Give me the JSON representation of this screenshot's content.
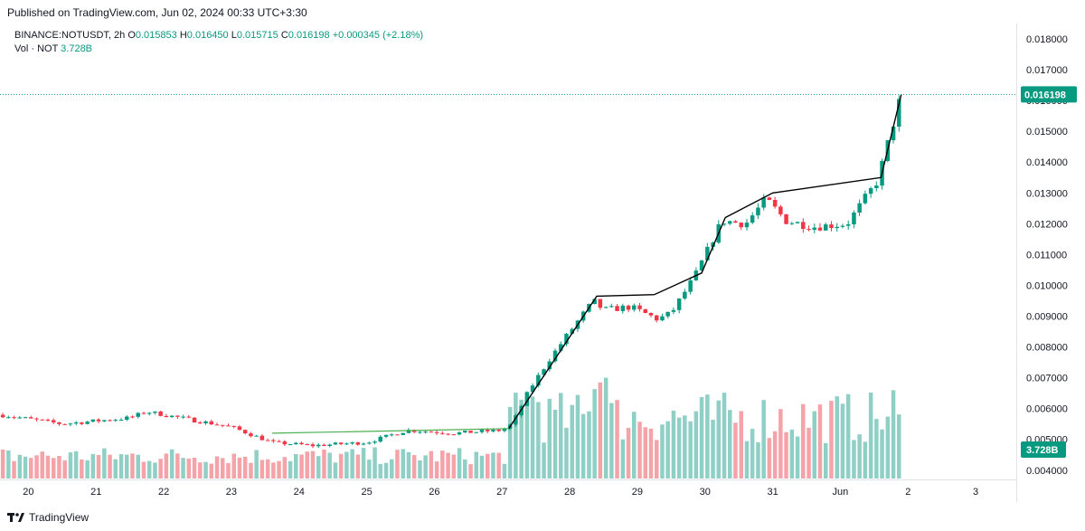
{
  "header": {
    "published_text": "Published on TradingView.com, Jun 02, 2024 00:33 UTC+3:30"
  },
  "legend": {
    "symbol": "BINANCE:NOTUSDT, 2h",
    "open_label": "O",
    "open": "0.015853",
    "high_label": "H",
    "high": "0.016450",
    "low_label": "L",
    "low": "0.015715",
    "close_label": "C",
    "close": "0.016198",
    "change": "+0.000345 (+2.18%)",
    "vol_label": "Vol · NOT",
    "vol_value": "3.728B"
  },
  "footer": {
    "brand": "TradingView",
    "logo_text": "TV"
  },
  "colors": {
    "up": "#089981",
    "down": "#f23645",
    "vol_up": "#8fcfc5",
    "vol_down": "#f4a3a8",
    "last_price": "#089981",
    "trendline_black": "#000000",
    "trendline_green": "#4caf50"
  },
  "chart_data": {
    "type": "candlestick",
    "title": "BINANCE:NOTUSDT, 2h",
    "y_ticks": [
      "0.018000",
      "0.017000",
      "0.016000",
      "0.015000",
      "0.014000",
      "0.013000",
      "0.012000",
      "0.011000",
      "0.010000",
      "0.009000",
      "0.008000",
      "0.007000",
      "0.006000",
      "0.005000",
      "0.004000"
    ],
    "y_tick_values": [
      0.018,
      0.017,
      0.016,
      0.015,
      0.014,
      0.013,
      0.012,
      0.011,
      0.01,
      0.009,
      0.008,
      0.007,
      0.006,
      0.005,
      0.004
    ],
    "ylim": [
      0.0037,
      0.0185
    ],
    "x_ticks": [
      "20",
      "21",
      "22",
      "23",
      "24",
      "25",
      "26",
      "27",
      "28",
      "29",
      "30",
      "31",
      "Jun",
      "2",
      "3"
    ],
    "x_tick_days": [
      0,
      1,
      2,
      3,
      4,
      5,
      6,
      7,
      8,
      9,
      10,
      11,
      12,
      13,
      14
    ],
    "xlim_days": [
      -0.42,
      14.6
    ],
    "last_price": 0.016198,
    "last_price_label": "0.016198",
    "volume_label": "3.728B",
    "candle_days_per_bar": 0.0833,
    "price_anchors_days": [
      -0.42,
      0.5,
      1.5,
      1.75,
      2.5,
      3.0,
      3.6,
      4.2,
      5.0,
      5.6,
      6.3,
      7.0,
      7.15,
      7.4,
      7.7,
      8.0,
      8.35,
      8.5,
      8.9,
      9.3,
      9.5,
      9.85,
      10.25,
      10.6,
      10.9,
      11.2,
      11.6,
      12.1,
      12.55,
      12.75,
      12.9
    ],
    "price_anchors": [
      0.0058,
      0.0055,
      0.0057,
      0.0059,
      0.0056,
      0.0054,
      0.0049,
      0.0048,
      0.0049,
      0.0053,
      0.0052,
      0.0053,
      0.0055,
      0.0066,
      0.0076,
      0.0085,
      0.0095,
      0.0092,
      0.0093,
      0.0089,
      0.0091,
      0.0103,
      0.0121,
      0.012,
      0.0128,
      0.0121,
      0.0119,
      0.012,
      0.0134,
      0.015,
      0.0162
    ],
    "trendlines": [
      {
        "color": "black",
        "points": [
          [
            7.1,
            0.00535
          ],
          [
            8.4,
            0.00965
          ],
          [
            9.25,
            0.0097
          ],
          [
            9.95,
            0.0104
          ],
          [
            10.3,
            0.0122
          ],
          [
            11.0,
            0.013
          ],
          [
            12.6,
            0.0135
          ],
          [
            12.9,
            0.0162
          ]
        ]
      },
      {
        "color": "green",
        "points": [
          [
            3.6,
            0.0052
          ],
          [
            7.1,
            0.00535
          ]
        ]
      }
    ]
  }
}
